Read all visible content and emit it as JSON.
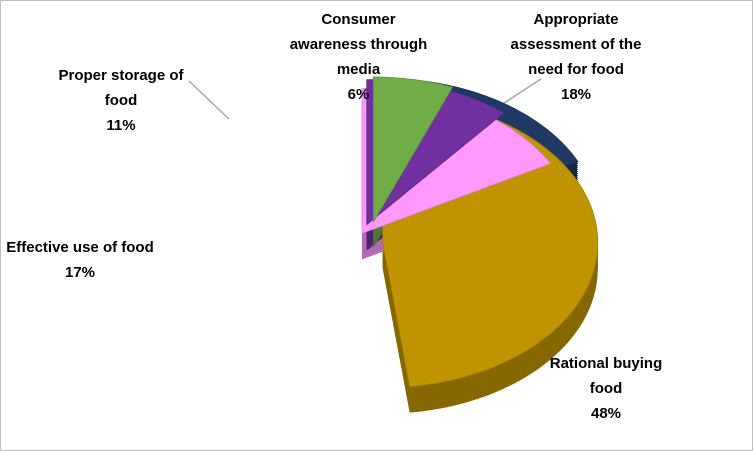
{
  "chart_data": {
    "type": "pie3d",
    "categories": [
      "Appropriate assessment of the need for food",
      "Rational buying food",
      "Effective use of food",
      "Proper storage of food",
      "Consumer awareness through media"
    ],
    "values": [
      18,
      48,
      17,
      11,
      6
    ],
    "value_labels": [
      "18%",
      "48%",
      "17%",
      "11%",
      "6%"
    ],
    "colors": [
      "#1f3864",
      "#c09300",
      "#ff99ff",
      "#7030a0",
      "#70ad47"
    ]
  }
}
